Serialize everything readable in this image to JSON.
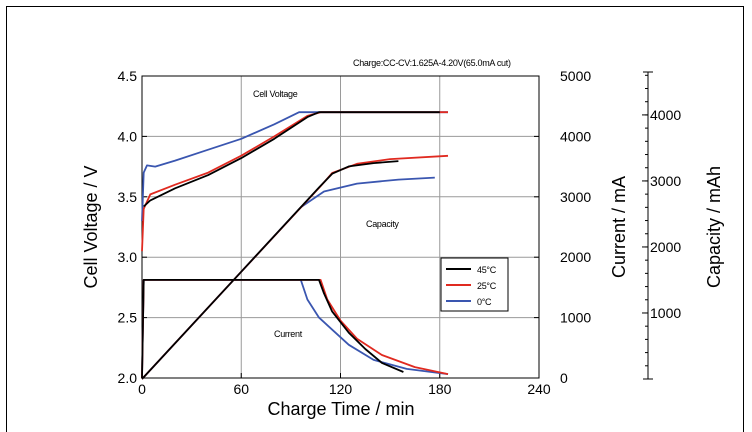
{
  "chart_data": {
    "type": "line",
    "annotation_top": "Charge:CC-CV:1.625A-4.20V(65.0mA cut)",
    "xlabel": "Charge Time  /  min",
    "ylabel_left": "Cell Voltage  /  V",
    "ylabel_current": "Current  /  mA",
    "ylabel_capacity": "Capacity  /  mAh",
    "xlim": [
      0,
      240
    ],
    "ylim_voltage": [
      2.0,
      4.5
    ],
    "ylim_current": [
      0,
      5000
    ],
    "ylim_capacity": [
      0,
      4000
    ],
    "x_ticks": [
      "0",
      "60",
      "120",
      "180",
      "240"
    ],
    "voltage_ticks": [
      "2.0",
      "2.5",
      "3.0",
      "3.5",
      "4.0",
      "4.5"
    ],
    "current_ticks": [
      "0",
      "1000",
      "2000",
      "3000",
      "4000",
      "5000"
    ],
    "capacity_ticks": [
      "1000",
      "2000",
      "3000",
      "4000"
    ],
    "grid": true,
    "legend_position": "right-center",
    "group_labels": {
      "voltage": "Cell Voltage",
      "capacity": "Capacity",
      "current": "Current"
    },
    "colors": {
      "45C": "#000000",
      "25C": "#e02a20",
      "0C": "#3a56b0"
    },
    "series": [
      {
        "name": "45°C",
        "color_key": "45C",
        "voltage": [
          [
            1,
            3.42
          ],
          [
            5,
            3.47
          ],
          [
            20,
            3.57
          ],
          [
            40,
            3.68
          ],
          [
            60,
            3.82
          ],
          [
            80,
            3.98
          ],
          [
            100,
            4.16
          ],
          [
            107,
            4.2
          ],
          [
            180,
            4.2
          ]
        ],
        "current": [
          [
            0,
            0
          ],
          [
            1,
            1625
          ],
          [
            107,
            1625
          ],
          [
            110,
            1400
          ],
          [
            115,
            1100
          ],
          [
            125,
            750
          ],
          [
            135,
            480
          ],
          [
            145,
            250
          ],
          [
            158,
            100
          ]
        ],
        "capacity": [
          [
            0,
            0
          ],
          [
            60,
            1625
          ],
          [
            107,
            2900
          ],
          [
            115,
            3110
          ],
          [
            125,
            3220
          ],
          [
            140,
            3270
          ],
          [
            155,
            3300
          ]
        ]
      },
      {
        "name": "25°C",
        "color_key": "25C",
        "voltage": [
          [
            0,
            3.05
          ],
          [
            1,
            3.4
          ],
          [
            5,
            3.52
          ],
          [
            20,
            3.6
          ],
          [
            40,
            3.7
          ],
          [
            60,
            3.84
          ],
          [
            80,
            4.0
          ],
          [
            100,
            4.17
          ],
          [
            108,
            4.2
          ],
          [
            185,
            4.2
          ]
        ],
        "current": [
          [
            0,
            0
          ],
          [
            1,
            1625
          ],
          [
            108,
            1625
          ],
          [
            112,
            1300
          ],
          [
            120,
            950
          ],
          [
            130,
            650
          ],
          [
            145,
            380
          ],
          [
            165,
            180
          ],
          [
            185,
            65
          ]
        ],
        "capacity": [
          [
            0,
            0
          ],
          [
            60,
            1625
          ],
          [
            108,
            2920
          ],
          [
            115,
            3120
          ],
          [
            130,
            3260
          ],
          [
            150,
            3330
          ],
          [
            185,
            3380
          ]
        ]
      },
      {
        "name": "0°C",
        "color_key": "0C",
        "voltage": [
          [
            0,
            3.3
          ],
          [
            1,
            3.7
          ],
          [
            3,
            3.76
          ],
          [
            8,
            3.75
          ],
          [
            20,
            3.8
          ],
          [
            40,
            3.89
          ],
          [
            60,
            3.98
          ],
          [
            80,
            4.1
          ],
          [
            95,
            4.2
          ],
          [
            185,
            4.2
          ]
        ],
        "current": [
          [
            0,
            0
          ],
          [
            1,
            1625
          ],
          [
            96,
            1625
          ],
          [
            100,
            1300
          ],
          [
            107,
            1000
          ],
          [
            115,
            800
          ],
          [
            125,
            550
          ],
          [
            140,
            300
          ],
          [
            160,
            150
          ],
          [
            185,
            65
          ]
        ],
        "capacity": [
          [
            0,
            0
          ],
          [
            60,
            1625
          ],
          [
            96,
            2600
          ],
          [
            110,
            2840
          ],
          [
            130,
            2960
          ],
          [
            155,
            3020
          ],
          [
            177,
            3050
          ]
        ]
      }
    ]
  }
}
